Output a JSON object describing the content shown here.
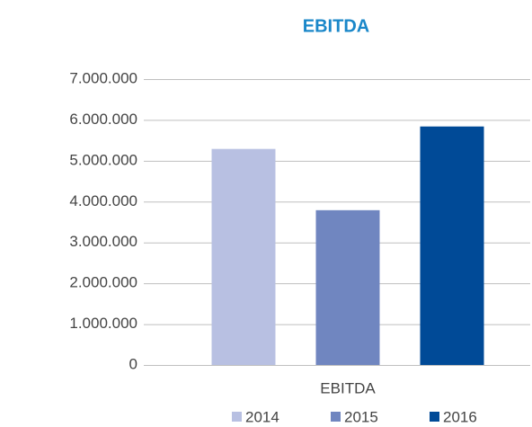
{
  "chart_data": {
    "type": "bar",
    "title": "EBITDA",
    "categories": [
      "EBITDA"
    ],
    "series": [
      {
        "name": "2014",
        "color": "#b8c0e2",
        "values": [
          5290000
        ]
      },
      {
        "name": "2015",
        "color": "#7086c0",
        "values": [
          3790000
        ]
      },
      {
        "name": "2016",
        "color": "#004a97",
        "values": [
          5840000
        ]
      }
    ],
    "ylim": [
      0,
      7000000
    ],
    "yticks": [
      0,
      {
        "value": 1000000,
        "label": "1.000.000"
      },
      {
        "value": 2000000,
        "label": "2.000.000"
      },
      {
        "value": 3000000,
        "label": "3.000.000"
      },
      {
        "value": 4000000,
        "label": "4.000.000"
      },
      {
        "value": 5000000,
        "label": "5.000.000"
      },
      {
        "value": 6000000,
        "label": "6.000.000"
      },
      {
        "value": 7000000,
        "label": "7.000.000"
      }
    ],
    "grid": true,
    "legend": "bottom"
  }
}
